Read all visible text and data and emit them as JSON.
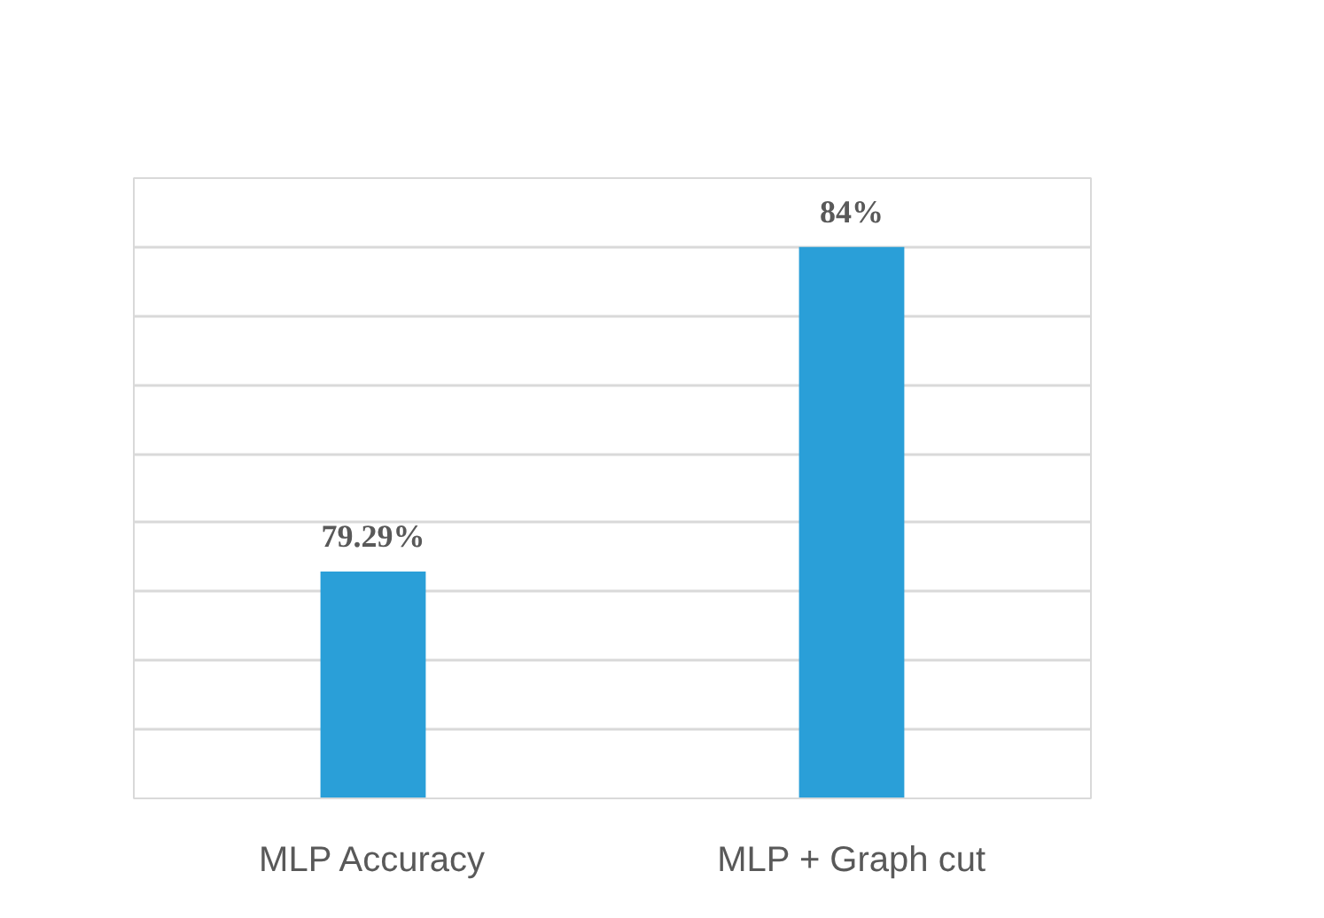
{
  "chart_data": {
    "type": "bar",
    "categories": [
      "MLP Accuracy",
      "MLP + Graph cut"
    ],
    "values": [
      79.29,
      84
    ],
    "value_labels": [
      "79.29%",
      "84%"
    ],
    "color": "#2a9fd8",
    "ylim": [
      76,
      85
    ],
    "yticks": [
      {
        "value": 76,
        "label": null
      },
      {
        "value": 77,
        "label": null
      },
      {
        "value": 78,
        "label": null
      },
      {
        "value": 79,
        "label": null
      },
      {
        "value": 80,
        "label": null
      },
      {
        "value": 81,
        "label": null
      },
      {
        "value": 82,
        "label": null
      },
      {
        "value": 83,
        "label": null
      },
      {
        "value": 84,
        "label": null
      },
      {
        "value": 85,
        "label": null
      }
    ],
    "grid": "y",
    "tick_labels": "x"
  }
}
